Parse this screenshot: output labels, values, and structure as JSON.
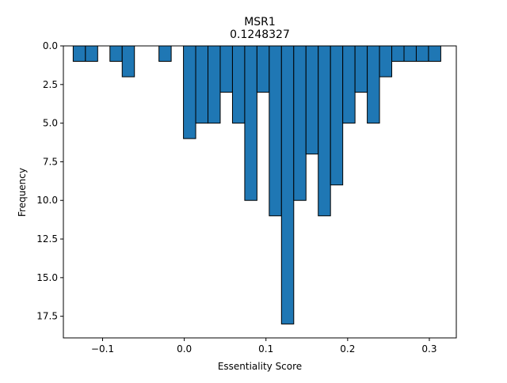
{
  "chart_data": {
    "type": "bar",
    "title": "MSR1",
    "subtitle": "0.1248327",
    "xlabel": "Essentiality Score",
    "ylabel": "Frequency",
    "y_inverted": true,
    "xlim": [
      -0.148,
      0.333
    ],
    "ylim": [
      0,
      18.9
    ],
    "x_ticks": [
      -0.1,
      0.0,
      0.1,
      0.2,
      0.3
    ],
    "x_tick_labels": [
      "−0.1",
      "0.0",
      "0.1",
      "0.2",
      "0.3"
    ],
    "y_ticks": [
      0,
      2.5,
      5,
      7.5,
      10,
      12.5,
      15,
      17.5
    ],
    "y_tick_labels": [
      "0.0",
      "2.5",
      "5.0",
      "7.5",
      "10.0",
      "12.5",
      "15.0",
      "17.5"
    ],
    "bin_width": 0.015,
    "bins": [
      {
        "x0": -0.136,
        "x1": -0.121,
        "count": 1
      },
      {
        "x0": -0.121,
        "x1": -0.106,
        "count": 1
      },
      {
        "x0": -0.091,
        "x1": -0.076,
        "count": 1
      },
      {
        "x0": -0.076,
        "x1": -0.061,
        "count": 2
      },
      {
        "x0": -0.031,
        "x1": -0.016,
        "count": 1
      },
      {
        "x0": -0.001,
        "x1": 0.014,
        "count": 6
      },
      {
        "x0": 0.014,
        "x1": 0.029,
        "count": 5
      },
      {
        "x0": 0.029,
        "x1": 0.044,
        "count": 5
      },
      {
        "x0": 0.044,
        "x1": 0.059,
        "count": 3
      },
      {
        "x0": 0.059,
        "x1": 0.074,
        "count": 5
      },
      {
        "x0": 0.074,
        "x1": 0.089,
        "count": 10
      },
      {
        "x0": 0.089,
        "x1": 0.104,
        "count": 3
      },
      {
        "x0": 0.104,
        "x1": 0.119,
        "count": 11
      },
      {
        "x0": 0.119,
        "x1": 0.134,
        "count": 18
      },
      {
        "x0": 0.134,
        "x1": 0.149,
        "count": 10
      },
      {
        "x0": 0.149,
        "x1": 0.164,
        "count": 7
      },
      {
        "x0": 0.164,
        "x1": 0.179,
        "count": 11
      },
      {
        "x0": 0.179,
        "x1": 0.194,
        "count": 9
      },
      {
        "x0": 0.194,
        "x1": 0.209,
        "count": 5
      },
      {
        "x0": 0.209,
        "x1": 0.224,
        "count": 3
      },
      {
        "x0": 0.224,
        "x1": 0.239,
        "count": 5
      },
      {
        "x0": 0.239,
        "x1": 0.254,
        "count": 2
      },
      {
        "x0": 0.254,
        "x1": 0.269,
        "count": 1
      },
      {
        "x0": 0.269,
        "x1": 0.284,
        "count": 1
      },
      {
        "x0": 0.284,
        "x1": 0.299,
        "count": 1
      },
      {
        "x0": 0.299,
        "x1": 0.314,
        "count": 1
      }
    ],
    "bar_color": "#1f77b4",
    "edge_color": "#000000",
    "grid": false,
    "legend": "none"
  }
}
